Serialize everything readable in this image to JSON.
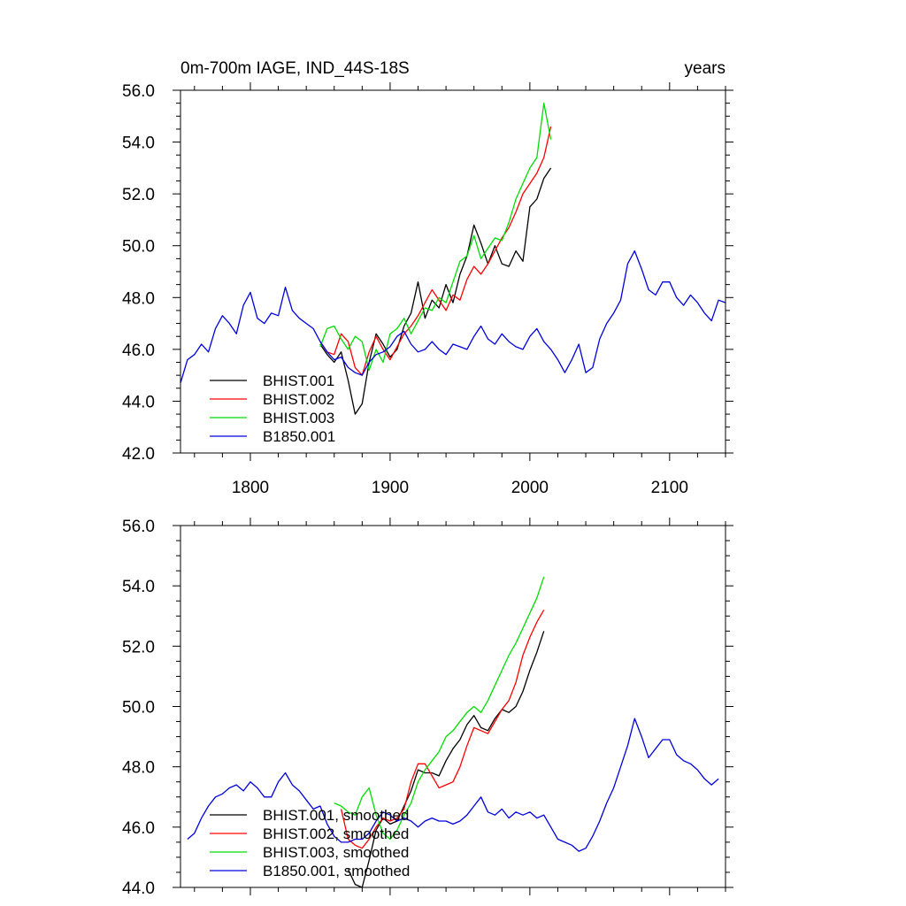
{
  "chart_data": [
    {
      "type": "line",
      "title": "0m-700m IAGE, IND_44S-18S",
      "units": "years",
      "xlim": [
        1750,
        2140
      ],
      "ylim": [
        42.0,
        56.0
      ],
      "x_ticks": [
        1800,
        1900,
        2000,
        2100
      ],
      "x_tick_labels": [
        "1800",
        "1900",
        "2000",
        "2100"
      ],
      "y_ticks": [
        42,
        44,
        46,
        48,
        50,
        52,
        54,
        56
      ],
      "y_tick_labels": [
        "42.0",
        "44.0",
        "46.0",
        "48.0",
        "50.0",
        "52.0",
        "54.0",
        "56.0"
      ],
      "grid": false,
      "legend_position": "bottom-left",
      "series": [
        {
          "name": "BHIST.001",
          "color": "#000000",
          "x": [
            1850,
            1855,
            1860,
            1865,
            1870,
            1875,
            1880,
            1885,
            1890,
            1895,
            1900,
            1905,
            1910,
            1915,
            1920,
            1925,
            1930,
            1935,
            1940,
            1945,
            1950,
            1955,
            1960,
            1965,
            1970,
            1975,
            1980,
            1985,
            1990,
            1995,
            2000,
            2005,
            2010,
            2015
          ],
          "y": [
            46.2,
            45.8,
            45.5,
            45.9,
            44.8,
            43.5,
            43.9,
            45.5,
            46.6,
            46.2,
            45.7,
            46.0,
            46.9,
            47.4,
            48.6,
            47.2,
            47.9,
            47.6,
            48.5,
            47.8,
            48.9,
            49.6,
            50.8,
            50.1,
            49.3,
            50.0,
            49.3,
            49.2,
            49.8,
            49.4,
            51.5,
            51.8,
            52.6,
            53.0
          ]
        },
        {
          "name": "BHIST.002",
          "color": "#ff0000",
          "x": [
            1850,
            1855,
            1860,
            1865,
            1870,
            1875,
            1880,
            1885,
            1890,
            1895,
            1900,
            1905,
            1910,
            1915,
            1920,
            1925,
            1930,
            1935,
            1940,
            1945,
            1950,
            1955,
            1960,
            1965,
            1970,
            1975,
            1980,
            1985,
            1990,
            1995,
            2000,
            2005,
            2010,
            2015
          ],
          "y": [
            46.3,
            45.9,
            45.8,
            46.6,
            46.3,
            45.3,
            45.0,
            45.9,
            46.5,
            46.0,
            45.6,
            46.1,
            46.6,
            46.9,
            47.3,
            47.8,
            48.3,
            47.9,
            47.5,
            48.1,
            47.9,
            48.7,
            49.2,
            48.9,
            49.3,
            49.8,
            50.3,
            50.7,
            51.3,
            52.0,
            52.4,
            52.8,
            53.4,
            54.6
          ]
        },
        {
          "name": "BHIST.003",
          "color": "#00dd00",
          "x": [
            1850,
            1855,
            1860,
            1865,
            1870,
            1875,
            1880,
            1885,
            1890,
            1895,
            1900,
            1905,
            1910,
            1915,
            1920,
            1925,
            1930,
            1935,
            1940,
            1945,
            1950,
            1955,
            1960,
            1965,
            1970,
            1975,
            1980,
            1985,
            1990,
            1995,
            2000,
            2005,
            2010,
            2015
          ],
          "y": [
            46.1,
            46.8,
            46.9,
            46.4,
            46.0,
            46.5,
            46.3,
            45.2,
            46.0,
            45.5,
            46.6,
            46.8,
            47.2,
            46.6,
            47.1,
            47.6,
            47.5,
            48.0,
            47.8,
            48.6,
            49.4,
            49.6,
            50.4,
            49.5,
            49.9,
            50.3,
            50.2,
            50.9,
            51.8,
            52.4,
            53.0,
            53.4,
            55.5,
            54.1
          ]
        },
        {
          "name": "B1850.001",
          "color": "#0000dd",
          "x": [
            1750,
            1755,
            1760,
            1765,
            1770,
            1775,
            1780,
            1785,
            1790,
            1795,
            1800,
            1805,
            1810,
            1815,
            1820,
            1825,
            1830,
            1835,
            1840,
            1845,
            1850,
            1855,
            1860,
            1865,
            1870,
            1875,
            1880,
            1885,
            1890,
            1895,
            1900,
            1905,
            1910,
            1915,
            1920,
            1925,
            1930,
            1935,
            1940,
            1945,
            1950,
            1955,
            1960,
            1965,
            1970,
            1975,
            1980,
            1985,
            1990,
            1995,
            2000,
            2005,
            2010,
            2015,
            2020,
            2025,
            2030,
            2035,
            2040,
            2045,
            2050,
            2055,
            2060,
            2065,
            2070,
            2075,
            2080,
            2085,
            2090,
            2095,
            2100,
            2105,
            2110,
            2115,
            2120,
            2125,
            2130,
            2135,
            2140
          ],
          "y": [
            44.7,
            45.6,
            45.8,
            46.2,
            45.9,
            46.8,
            47.3,
            47.0,
            46.6,
            47.7,
            48.2,
            47.2,
            47.0,
            47.4,
            47.3,
            48.4,
            47.5,
            47.2,
            47.0,
            46.8,
            46.3,
            45.9,
            45.6,
            45.7,
            45.3,
            45.1,
            45.0,
            45.5,
            45.8,
            45.9,
            46.1,
            46.5,
            46.7,
            46.2,
            45.9,
            46.0,
            46.3,
            46.0,
            45.8,
            46.2,
            46.1,
            46.0,
            46.5,
            46.9,
            46.4,
            46.2,
            46.6,
            46.3,
            46.1,
            46.0,
            46.5,
            46.8,
            46.3,
            46.0,
            45.6,
            45.1,
            45.6,
            46.2,
            45.1,
            45.3,
            46.4,
            47.0,
            47.4,
            47.9,
            49.3,
            49.8,
            49.1,
            48.3,
            48.1,
            48.6,
            48.6,
            48.0,
            47.7,
            48.1,
            47.8,
            47.4,
            47.1,
            47.9,
            47.8
          ]
        }
      ]
    },
    {
      "type": "line",
      "xlim": [
        1750,
        2140
      ],
      "ylim": [
        44.0,
        56.0
      ],
      "x_ticks": [
        1800,
        1900,
        2000,
        2100
      ],
      "y_ticks": [
        44,
        46,
        48,
        50,
        52,
        54,
        56
      ],
      "y_tick_labels": [
        "44.0",
        "46.0",
        "48.0",
        "50.0",
        "52.0",
        "54.0",
        "56.0"
      ],
      "grid": false,
      "legend_position": "bottom-left",
      "series": [
        {
          "name": "BHIST.001, smoothed",
          "color": "#000000",
          "x": [
            1870,
            1875,
            1880,
            1885,
            1890,
            1895,
            1900,
            1905,
            1910,
            1915,
            1920,
            1925,
            1930,
            1935,
            1940,
            1945,
            1950,
            1955,
            1960,
            1965,
            1970,
            1975,
            1980,
            1985,
            1990,
            1995,
            2000,
            2005,
            2010
          ],
          "y": [
            44.6,
            44.1,
            44.0,
            44.9,
            45.9,
            46.3,
            46.1,
            46.2,
            46.7,
            47.2,
            47.9,
            47.8,
            47.8,
            47.7,
            48.2,
            48.6,
            48.9,
            49.4,
            49.7,
            49.3,
            49.2,
            49.6,
            49.9,
            49.8,
            50.0,
            50.5,
            51.2,
            51.8,
            52.5
          ]
        },
        {
          "name": "BHIST.002, smoothed",
          "color": "#ff0000",
          "x": [
            1865,
            1870,
            1875,
            1880,
            1885,
            1890,
            1895,
            1900,
            1905,
            1910,
            1915,
            1920,
            1925,
            1930,
            1935,
            1940,
            1945,
            1950,
            1955,
            1960,
            1965,
            1970,
            1975,
            1980,
            1985,
            1990,
            1995,
            2000,
            2005,
            2010
          ],
          "y": [
            46.6,
            45.6,
            45.4,
            45.3,
            45.6,
            46.0,
            46.3,
            46.2,
            46.3,
            46.6,
            47.5,
            48.1,
            48.1,
            47.7,
            47.3,
            47.4,
            47.5,
            48.0,
            48.7,
            49.3,
            49.2,
            49.1,
            49.5,
            49.9,
            50.2,
            50.8,
            51.7,
            52.3,
            52.8,
            53.2
          ]
        },
        {
          "name": "BHIST.003, smoothed",
          "color": "#00dd00",
          "x": [
            1860,
            1865,
            1870,
            1875,
            1880,
            1885,
            1890,
            1895,
            1900,
            1905,
            1910,
            1915,
            1920,
            1925,
            1930,
            1935,
            1940,
            1945,
            1950,
            1955,
            1960,
            1965,
            1970,
            1975,
            1980,
            1985,
            1990,
            1995,
            2000,
            2005,
            2010
          ],
          "y": [
            46.8,
            46.7,
            46.5,
            46.4,
            47.0,
            47.3,
            46.4,
            45.8,
            45.6,
            45.9,
            46.4,
            46.8,
            47.5,
            47.9,
            48.2,
            48.5,
            49.0,
            49.2,
            49.5,
            49.8,
            50.0,
            49.8,
            50.2,
            50.7,
            51.2,
            51.7,
            52.1,
            52.6,
            53.1,
            53.6,
            54.3
          ]
        },
        {
          "name": "B1850.001, smoothed",
          "color": "#0000dd",
          "x": [
            1755,
            1760,
            1765,
            1770,
            1775,
            1780,
            1785,
            1790,
            1795,
            1800,
            1805,
            1810,
            1815,
            1820,
            1825,
            1830,
            1835,
            1840,
            1845,
            1850,
            1855,
            1860,
            1865,
            1870,
            1875,
            1880,
            1885,
            1890,
            1895,
            1900,
            1905,
            1910,
            1915,
            1920,
            1925,
            1930,
            1935,
            1940,
            1945,
            1950,
            1955,
            1960,
            1965,
            1970,
            1975,
            1980,
            1985,
            1990,
            1995,
            2000,
            2005,
            2010,
            2015,
            2020,
            2025,
            2030,
            2035,
            2040,
            2045,
            2050,
            2055,
            2060,
            2065,
            2070,
            2075,
            2080,
            2085,
            2090,
            2095,
            2100,
            2105,
            2110,
            2115,
            2120,
            2125,
            2130,
            2135
          ],
          "y": [
            45.6,
            45.8,
            46.3,
            46.7,
            47.0,
            47.1,
            47.3,
            47.4,
            47.2,
            47.5,
            47.3,
            47.0,
            47.0,
            47.5,
            47.8,
            47.4,
            47.2,
            46.9,
            46.6,
            46.7,
            46.1,
            45.7,
            45.5,
            45.5,
            45.6,
            45.6,
            45.8,
            46.2,
            46.5,
            46.4,
            46.2,
            46.3,
            46.2,
            46.0,
            46.2,
            46.3,
            46.2,
            46.2,
            46.1,
            46.2,
            46.4,
            46.7,
            47.0,
            46.5,
            46.4,
            46.6,
            46.3,
            46.5,
            46.4,
            46.5,
            46.3,
            46.4,
            46.0,
            45.6,
            45.5,
            45.4,
            45.2,
            45.3,
            45.7,
            46.2,
            46.8,
            47.3,
            48.0,
            48.7,
            49.6,
            49.0,
            48.3,
            48.6,
            48.9,
            48.9,
            48.4,
            48.2,
            48.1,
            47.9,
            47.6,
            47.4,
            47.6
          ]
        }
      ]
    }
  ]
}
